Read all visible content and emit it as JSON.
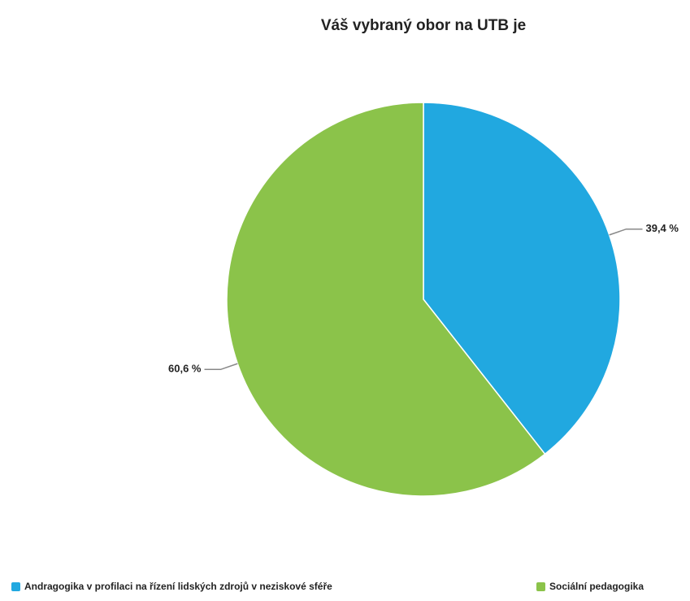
{
  "chart_data": {
    "type": "pie",
    "title": "Váš vybraný obor na UTB je",
    "categories": [
      "Andragogika v profilaci na řízení lidských zdrojů v neziskové sféře",
      "Sociální pedagogika"
    ],
    "values": [
      39.4,
      60.6
    ],
    "value_labels": [
      "39,4 %",
      "60,6 %"
    ],
    "colors": [
      "#21a8e0",
      "#8bc34a"
    ],
    "legend": "bottom"
  }
}
